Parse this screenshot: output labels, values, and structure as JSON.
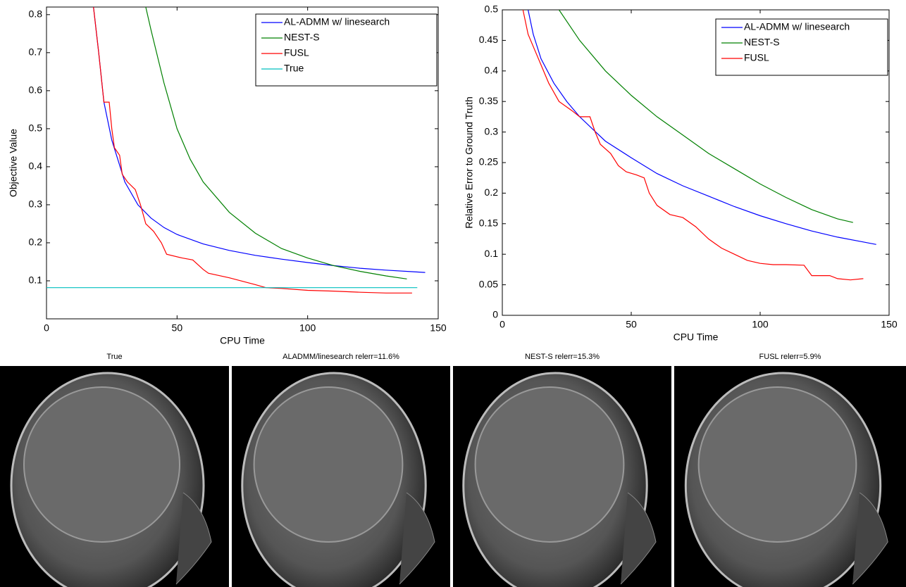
{
  "chart_data": [
    {
      "type": "line",
      "xlabel": "CPU Time",
      "ylabel": "Objective Value",
      "xlim": [
        0,
        150
      ],
      "xticks": [
        0,
        50,
        100,
        150
      ],
      "ylim": [
        0,
        0.82
      ],
      "yticks": [
        0.1,
        0.2,
        0.3,
        0.4,
        0.5,
        0.6,
        0.7,
        0.8
      ],
      "legend": "upper right",
      "series": [
        {
          "name": "AL-ADMM w/ linesearch",
          "color": "#0000ff",
          "x": [
            18,
            20,
            22,
            25,
            30,
            35,
            40,
            45,
            50,
            60,
            70,
            80,
            90,
            100,
            110,
            120,
            130,
            140,
            145
          ],
          "values": [
            0.82,
            0.7,
            0.57,
            0.47,
            0.36,
            0.3,
            0.265,
            0.24,
            0.222,
            0.197,
            0.18,
            0.167,
            0.157,
            0.148,
            0.14,
            0.133,
            0.128,
            0.124,
            0.122
          ]
        },
        {
          "name": "NEST-S",
          "color": "#008000",
          "x": [
            38,
            40,
            45,
            50,
            55,
            60,
            70,
            80,
            90,
            100,
            110,
            120,
            130,
            138
          ],
          "values": [
            0.82,
            0.76,
            0.62,
            0.5,
            0.42,
            0.36,
            0.28,
            0.225,
            0.185,
            0.16,
            0.14,
            0.125,
            0.113,
            0.105
          ]
        },
        {
          "name": "FUSL",
          "color": "#ff0000",
          "x": [
            18,
            20,
            22,
            24,
            25,
            26,
            28,
            29,
            31,
            34,
            36,
            38,
            41,
            44,
            46,
            52,
            56,
            60,
            62,
            70,
            80,
            84,
            90,
            100,
            110,
            120,
            130,
            140
          ],
          "values": [
            0.82,
            0.7,
            0.57,
            0.57,
            0.5,
            0.45,
            0.43,
            0.38,
            0.36,
            0.34,
            0.3,
            0.25,
            0.23,
            0.2,
            0.17,
            0.16,
            0.155,
            0.13,
            0.12,
            0.108,
            0.09,
            0.082,
            0.08,
            0.075,
            0.073,
            0.07,
            0.068,
            0.068
          ]
        },
        {
          "name": "True",
          "color": "#00bfbf",
          "x": [
            0,
            142
          ],
          "values": [
            0.082,
            0.082
          ]
        }
      ]
    },
    {
      "type": "line",
      "xlabel": "CPU Time",
      "ylabel": "Relative Error to Ground Truth",
      "xlim": [
        0,
        150
      ],
      "xticks": [
        0,
        50,
        100,
        150
      ],
      "ylim": [
        0,
        0.5
      ],
      "yticks": [
        0,
        0.05,
        0.1,
        0.15,
        0.2,
        0.25,
        0.3,
        0.35,
        0.4,
        0.45,
        0.5
      ],
      "legend": "upper right",
      "series": [
        {
          "name": "AL-ADMM w/ linesearch",
          "color": "#0000ff",
          "x": [
            10,
            12,
            15,
            20,
            25,
            30,
            35,
            40,
            50,
            60,
            70,
            80,
            90,
            100,
            110,
            120,
            130,
            140,
            145
          ],
          "values": [
            0.5,
            0.46,
            0.42,
            0.38,
            0.35,
            0.325,
            0.305,
            0.285,
            0.258,
            0.232,
            0.212,
            0.195,
            0.178,
            0.163,
            0.15,
            0.138,
            0.128,
            0.12,
            0.116
          ]
        },
        {
          "name": "NEST-S",
          "color": "#008000",
          "x": [
            22,
            30,
            40,
            50,
            60,
            70,
            80,
            90,
            100,
            110,
            120,
            130,
            136
          ],
          "values": [
            0.5,
            0.45,
            0.4,
            0.36,
            0.325,
            0.295,
            0.265,
            0.24,
            0.215,
            0.193,
            0.173,
            0.158,
            0.152
          ]
        },
        {
          "name": "FUSL",
          "color": "#ff0000",
          "x": [
            8,
            10,
            13,
            15,
            18,
            22,
            27,
            30,
            34,
            36,
            38,
            42,
            45,
            48,
            52,
            55,
            57,
            60,
            65,
            70,
            75,
            80,
            85,
            90,
            95,
            100,
            105,
            110,
            117,
            120,
            127,
            130,
            135,
            140
          ],
          "values": [
            0.5,
            0.46,
            0.43,
            0.41,
            0.38,
            0.35,
            0.335,
            0.325,
            0.325,
            0.3,
            0.28,
            0.265,
            0.245,
            0.235,
            0.23,
            0.225,
            0.2,
            0.18,
            0.165,
            0.16,
            0.145,
            0.125,
            0.11,
            0.1,
            0.09,
            0.085,
            0.083,
            0.083,
            0.082,
            0.065,
            0.065,
            0.06,
            0.058,
            0.06
          ]
        }
      ]
    }
  ],
  "images": [
    {
      "caption": "True"
    },
    {
      "caption": "ALADMM/linesearch relerr=11.6%"
    },
    {
      "caption": "NEST-S relerr=15.3%"
    },
    {
      "caption": "FUSL relerr=5.9%"
    }
  ]
}
